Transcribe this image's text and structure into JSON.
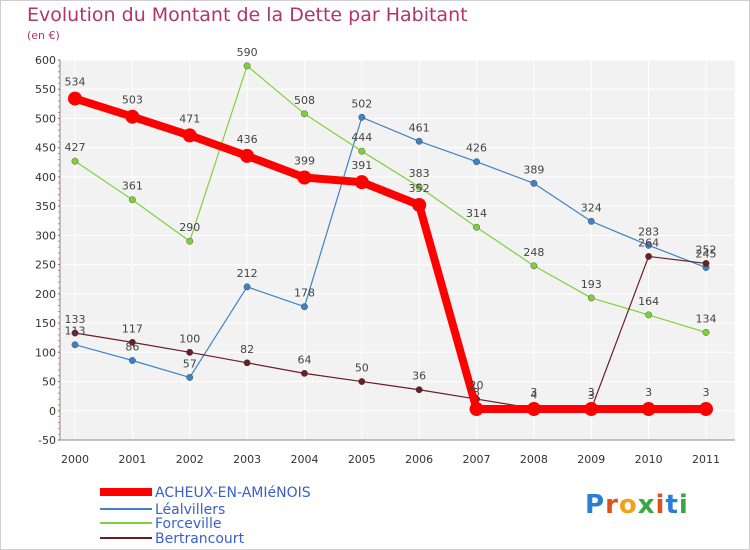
{
  "chart_data": {
    "type": "line",
    "title": "Evolution du Montant de la Dette par Habitant",
    "subtitle": "(en €)",
    "xlabel": "",
    "ylabel": "",
    "x": [
      "2000",
      "2001",
      "2002",
      "2003",
      "2004",
      "2005",
      "2006",
      "2007",
      "2008",
      "2009",
      "2010",
      "2011"
    ],
    "ylim": [
      -50,
      600
    ],
    "yticks": [
      -50,
      0,
      50,
      100,
      150,
      200,
      250,
      300,
      350,
      400,
      450,
      500,
      550,
      600
    ],
    "grid": true,
    "legend_position": "bottom-left",
    "series": [
      {
        "name": "ACHEUX-EN-AMIéNOIS",
        "color": "#ff0000",
        "values": [
          534,
          503,
          471,
          436,
          399,
          391,
          352,
          3,
          3,
          3,
          3,
          3
        ]
      },
      {
        "name": "Léalvillers",
        "color": "#3d84c6",
        "values": [
          113,
          86,
          57,
          212,
          178,
          502,
          461,
          426,
          389,
          324,
          283,
          245
        ]
      },
      {
        "name": "Forceville",
        "color": "#7fd13b",
        "values": [
          427,
          361,
          290,
          590,
          508,
          444,
          383,
          314,
          248,
          193,
          164,
          134
        ]
      },
      {
        "name": "Bertrancourt",
        "color": "#6b1e24",
        "values": [
          133,
          117,
          100,
          82,
          64,
          50,
          36,
          20,
          4,
          3,
          264,
          252
        ]
      }
    ]
  },
  "logo": {
    "letters": [
      "P",
      "r",
      "o",
      "x",
      "i",
      "t",
      "i"
    ],
    "colors": [
      "#2a7fd4",
      "#e0501c",
      "#f2a11c",
      "#3aa640",
      "#e0501c",
      "#2a7fd4",
      "#3aa640"
    ]
  }
}
